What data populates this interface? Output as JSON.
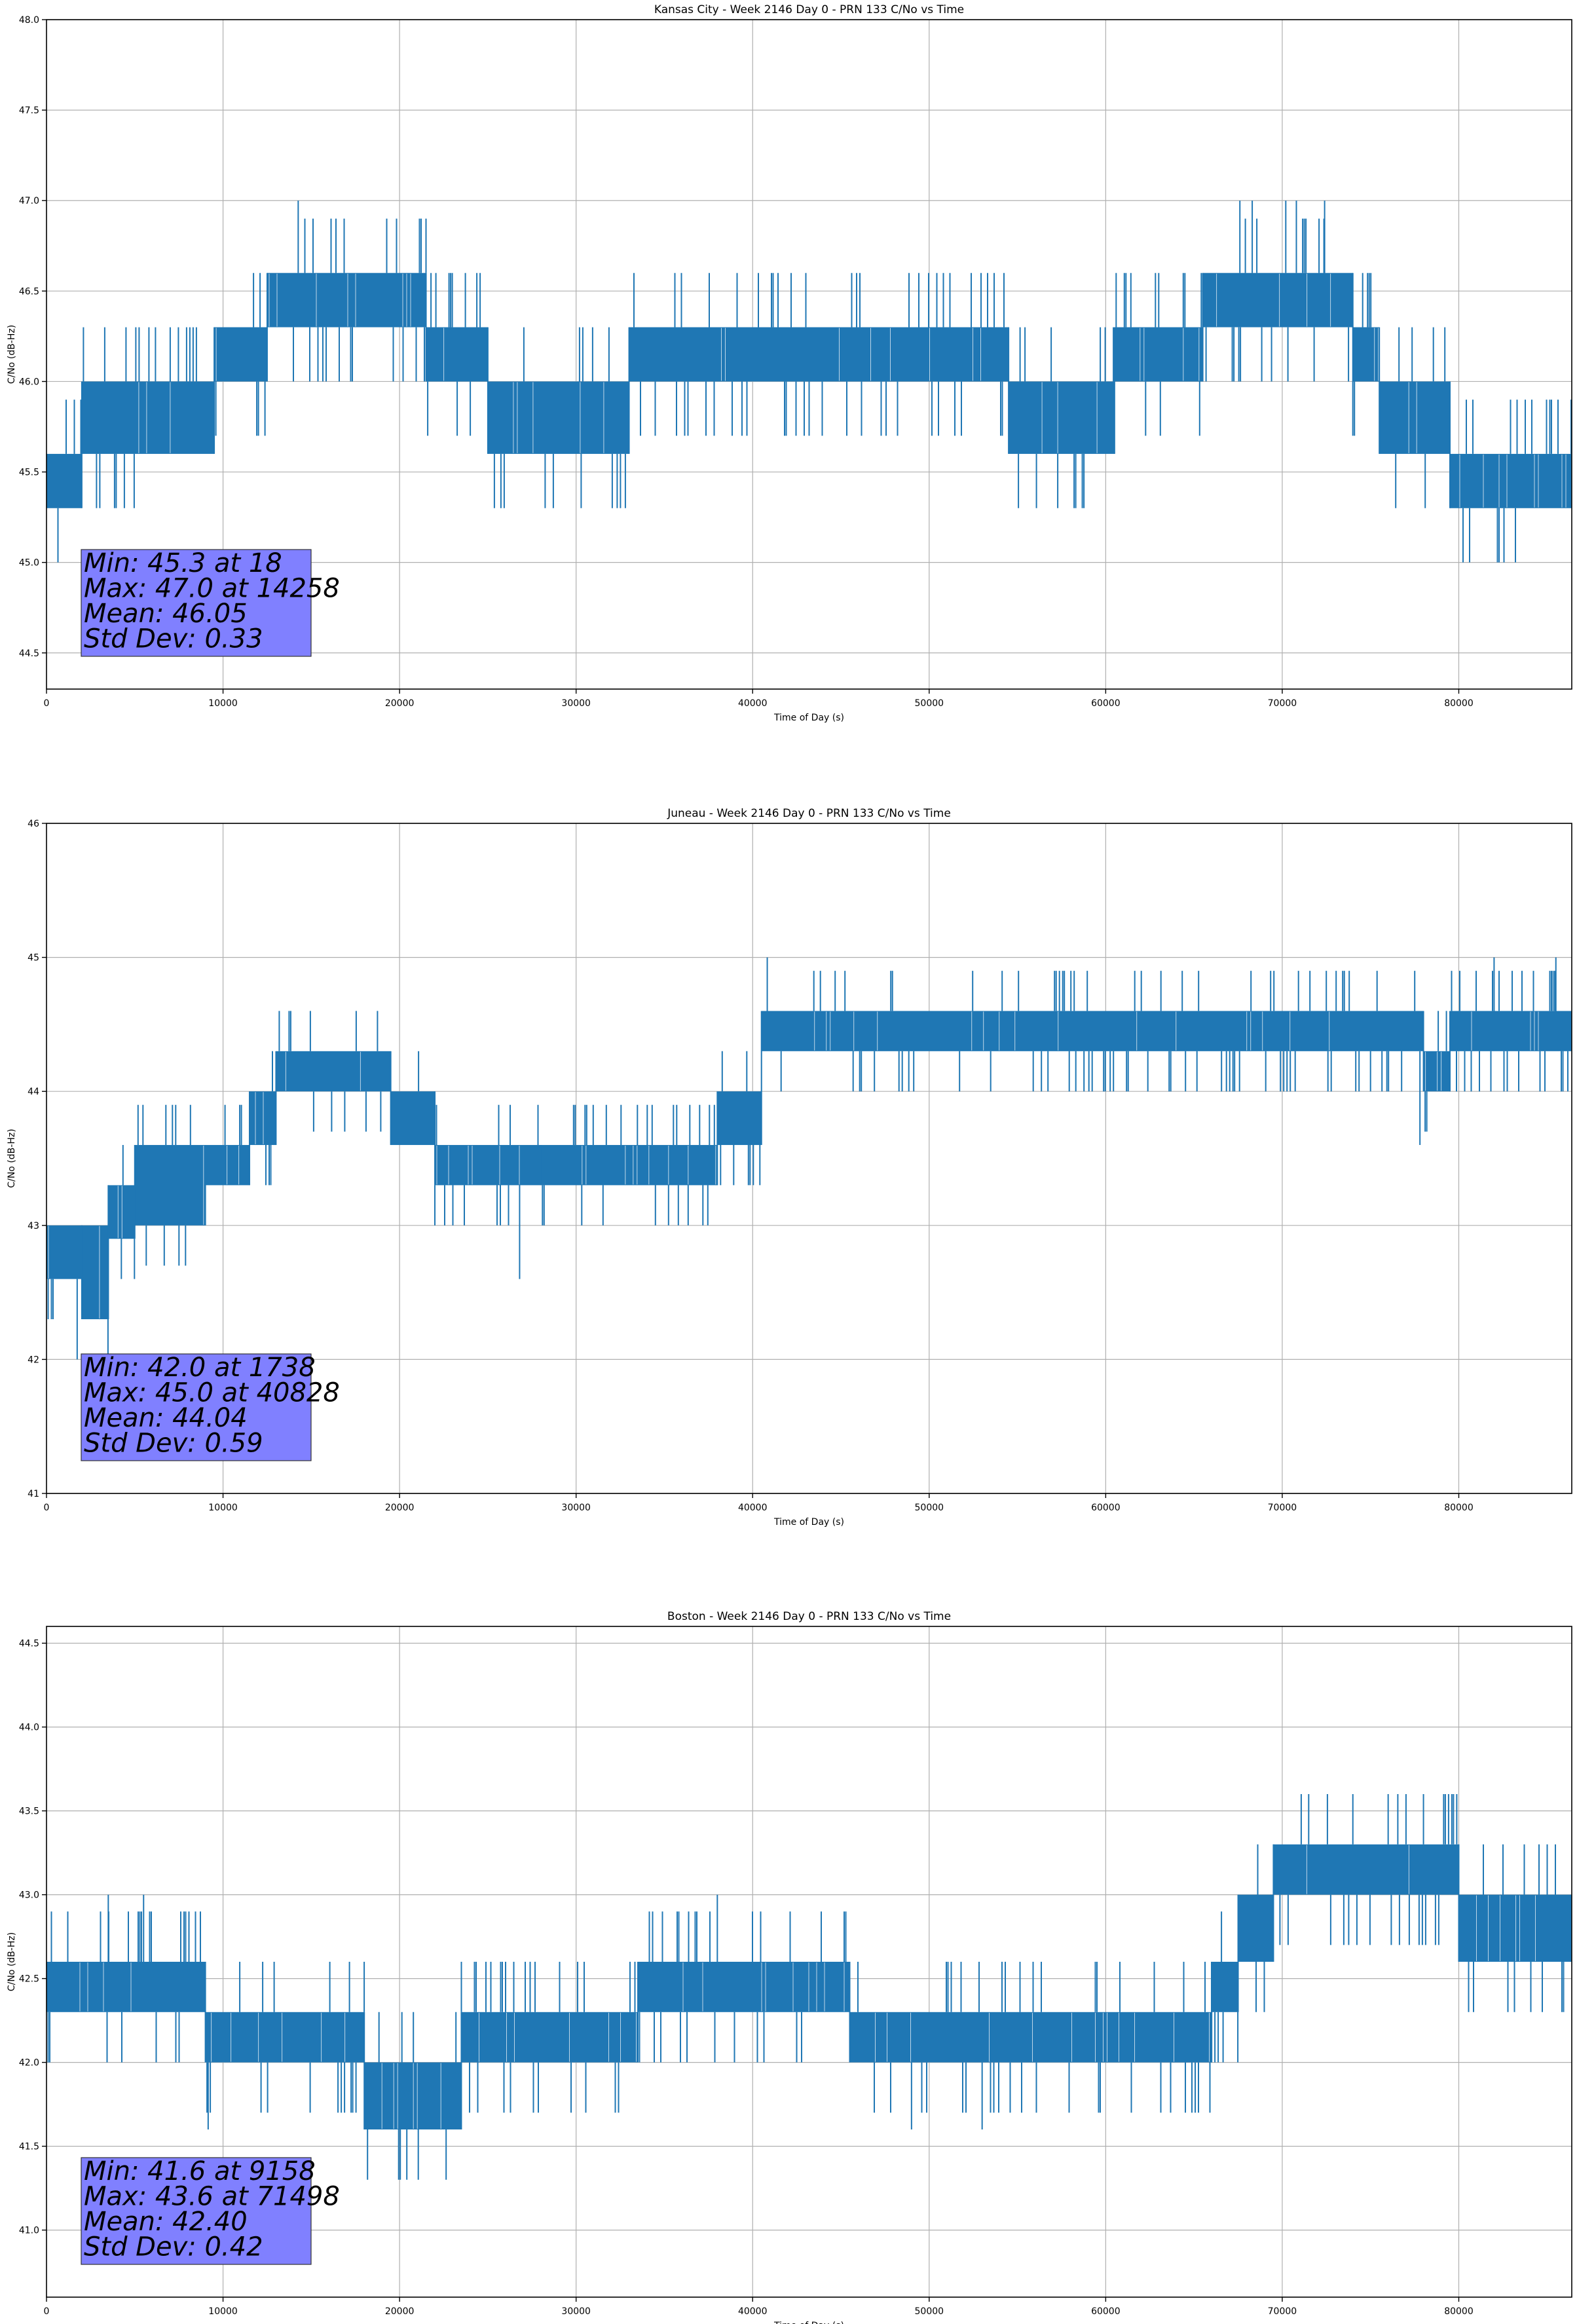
{
  "chart_data": [
    {
      "type": "line",
      "title": "Kansas City - Week 2146 Day 0 - PRN 133 C/No vs Time",
      "xlabel": "Time of Day (s)",
      "ylabel": "C/No (dB-Hz)",
      "xlim": [
        0,
        86400
      ],
      "ylim": [
        44.3,
        48.0
      ],
      "xticks": [
        0,
        10000,
        20000,
        30000,
        40000,
        50000,
        60000,
        70000,
        80000
      ],
      "yticks": [
        "44.5",
        "45.0",
        "45.5",
        "46.0",
        "46.5",
        "47.0",
        "47.5",
        "48.0"
      ],
      "grid": true,
      "color": "#1f77b4",
      "stats": [
        "Min: 45.3 at 18",
        "Max: 47.0 at 14258",
        "Mean: 46.05",
        "Std Dev: 0.33"
      ],
      "stats_box_color": "#8080ff",
      "segments": [
        {
          "x0": 0,
          "x1": 2000,
          "lo": 45.3,
          "hi": 45.6
        },
        {
          "x0": 2000,
          "x1": 9500,
          "lo": 45.6,
          "hi": 46.0
        },
        {
          "x0": 9500,
          "x1": 12500,
          "lo": 46.0,
          "hi": 46.3
        },
        {
          "x0": 12500,
          "x1": 21500,
          "lo": 46.3,
          "hi": 46.6
        },
        {
          "x0": 21500,
          "x1": 25000,
          "lo": 46.0,
          "hi": 46.3
        },
        {
          "x0": 25000,
          "x1": 33000,
          "lo": 45.6,
          "hi": 46.0
        },
        {
          "x0": 33000,
          "x1": 54500,
          "lo": 46.0,
          "hi": 46.3
        },
        {
          "x0": 54500,
          "x1": 60500,
          "lo": 45.6,
          "hi": 46.0
        },
        {
          "x0": 60500,
          "x1": 65500,
          "lo": 46.0,
          "hi": 46.3
        },
        {
          "x0": 65500,
          "x1": 74000,
          "lo": 46.3,
          "hi": 46.6
        },
        {
          "x0": 74000,
          "x1": 75500,
          "lo": 46.0,
          "hi": 46.3
        },
        {
          "x0": 75500,
          "x1": 79500,
          "lo": 45.6,
          "hi": 46.0
        },
        {
          "x0": 79500,
          "x1": 86400,
          "lo": 45.3,
          "hi": 45.6
        }
      ],
      "spikes": [
        [
          14258,
          47.0
        ],
        [
          67600,
          47.0
        ],
        [
          68300,
          47.0
        ],
        [
          70200,
          47.0
        ],
        [
          70800,
          47.0
        ],
        [
          72400,
          47.0
        ]
      ]
    },
    {
      "type": "line",
      "title": "Juneau - Week 2146 Day 0 - PRN 133 C/No vs Time",
      "xlabel": "Time of Day (s)",
      "ylabel": "C/No (dB-Hz)",
      "xlim": [
        0,
        86400
      ],
      "ylim": [
        41,
        46
      ],
      "xticks": [
        0,
        10000,
        20000,
        30000,
        40000,
        50000,
        60000,
        70000,
        80000
      ],
      "yticks": [
        "41",
        "42",
        "43",
        "44",
        "45",
        "46"
      ],
      "grid": true,
      "color": "#1f77b4",
      "stats": [
        "Min: 42.0 at 1738",
        "Max: 45.0 at 40828",
        "Mean: 44.04",
        "Std Dev: 0.59"
      ],
      "stats_box_color": "#8080ff",
      "segments": [
        {
          "x0": 0,
          "x1": 2000,
          "lo": 42.6,
          "hi": 43.0
        },
        {
          "x0": 2000,
          "x1": 3500,
          "lo": 42.3,
          "hi": 43.0
        },
        {
          "x0": 3500,
          "x1": 5000,
          "lo": 42.9,
          "hi": 43.3
        },
        {
          "x0": 5000,
          "x1": 9000,
          "lo": 43.0,
          "hi": 43.6
        },
        {
          "x0": 9000,
          "x1": 11500,
          "lo": 43.3,
          "hi": 43.6
        },
        {
          "x0": 11500,
          "x1": 13000,
          "lo": 43.6,
          "hi": 44.0
        },
        {
          "x0": 13000,
          "x1": 19500,
          "lo": 44.0,
          "hi": 44.3
        },
        {
          "x0": 19500,
          "x1": 22000,
          "lo": 43.6,
          "hi": 44.0
        },
        {
          "x0": 22000,
          "x1": 28000,
          "lo": 43.3,
          "hi": 43.6
        },
        {
          "x0": 28000,
          "x1": 38000,
          "lo": 43.3,
          "hi": 43.6
        },
        {
          "x0": 38000,
          "x1": 40500,
          "lo": 43.6,
          "hi": 44.0
        },
        {
          "x0": 40500,
          "x1": 78000,
          "lo": 44.3,
          "hi": 44.6
        },
        {
          "x0": 78000,
          "x1": 79500,
          "lo": 44.0,
          "hi": 44.3
        },
        {
          "x0": 79500,
          "x1": 86400,
          "lo": 44.3,
          "hi": 44.6
        }
      ],
      "spikes": [
        [
          1738,
          42.0
        ],
        [
          3500,
          42.3
        ],
        [
          26800,
          42.6
        ],
        [
          77800,
          43.6
        ],
        [
          40828,
          45.0
        ],
        [
          82000,
          45.0
        ],
        [
          85500,
          45.0
        ]
      ]
    },
    {
      "type": "line",
      "title": "Boston - Week 2146 Day 0 - PRN 133 C/No vs Time",
      "xlabel": "Time of Day (s)",
      "ylabel": "C/No (dB-Hz)",
      "xlim": [
        0,
        86400
      ],
      "ylim": [
        40.6,
        44.6
      ],
      "xticks": [
        0,
        10000,
        20000,
        30000,
        40000,
        50000,
        60000,
        70000,
        80000
      ],
      "yticks": [
        "41.0",
        "41.5",
        "42.0",
        "42.5",
        "43.0",
        "43.5",
        "44.0",
        "44.5"
      ],
      "grid": true,
      "color": "#1f77b4",
      "stats": [
        "Min: 41.6 at 9158",
        "Max: 43.6 at 71498",
        "Mean: 42.40",
        "Std Dev: 0.42"
      ],
      "stats_box_color": "#8080ff",
      "segments": [
        {
          "x0": 0,
          "x1": 9000,
          "lo": 42.3,
          "hi": 42.6
        },
        {
          "x0": 9000,
          "x1": 18000,
          "lo": 42.0,
          "hi": 42.3
        },
        {
          "x0": 18000,
          "x1": 23500,
          "lo": 41.6,
          "hi": 42.0
        },
        {
          "x0": 23500,
          "x1": 33500,
          "lo": 42.0,
          "hi": 42.3
        },
        {
          "x0": 33500,
          "x1": 45500,
          "lo": 42.3,
          "hi": 42.6
        },
        {
          "x0": 45500,
          "x1": 66000,
          "lo": 42.0,
          "hi": 42.3
        },
        {
          "x0": 66000,
          "x1": 67500,
          "lo": 42.3,
          "hi": 42.6
        },
        {
          "x0": 67500,
          "x1": 69500,
          "lo": 42.6,
          "hi": 43.0
        },
        {
          "x0": 69500,
          "x1": 80000,
          "lo": 43.0,
          "hi": 43.3
        },
        {
          "x0": 80000,
          "x1": 86400,
          "lo": 42.6,
          "hi": 43.0
        }
      ],
      "spikes": [
        [
          3500,
          43.0
        ],
        [
          5500,
          43.0
        ],
        [
          9158,
          41.6
        ],
        [
          38000,
          43.0
        ],
        [
          49000,
          41.6
        ],
        [
          53000,
          41.6
        ],
        [
          71498,
          43.6
        ],
        [
          74000,
          43.6
        ],
        [
          76000,
          43.6
        ],
        [
          78000,
          43.6
        ]
      ]
    }
  ]
}
